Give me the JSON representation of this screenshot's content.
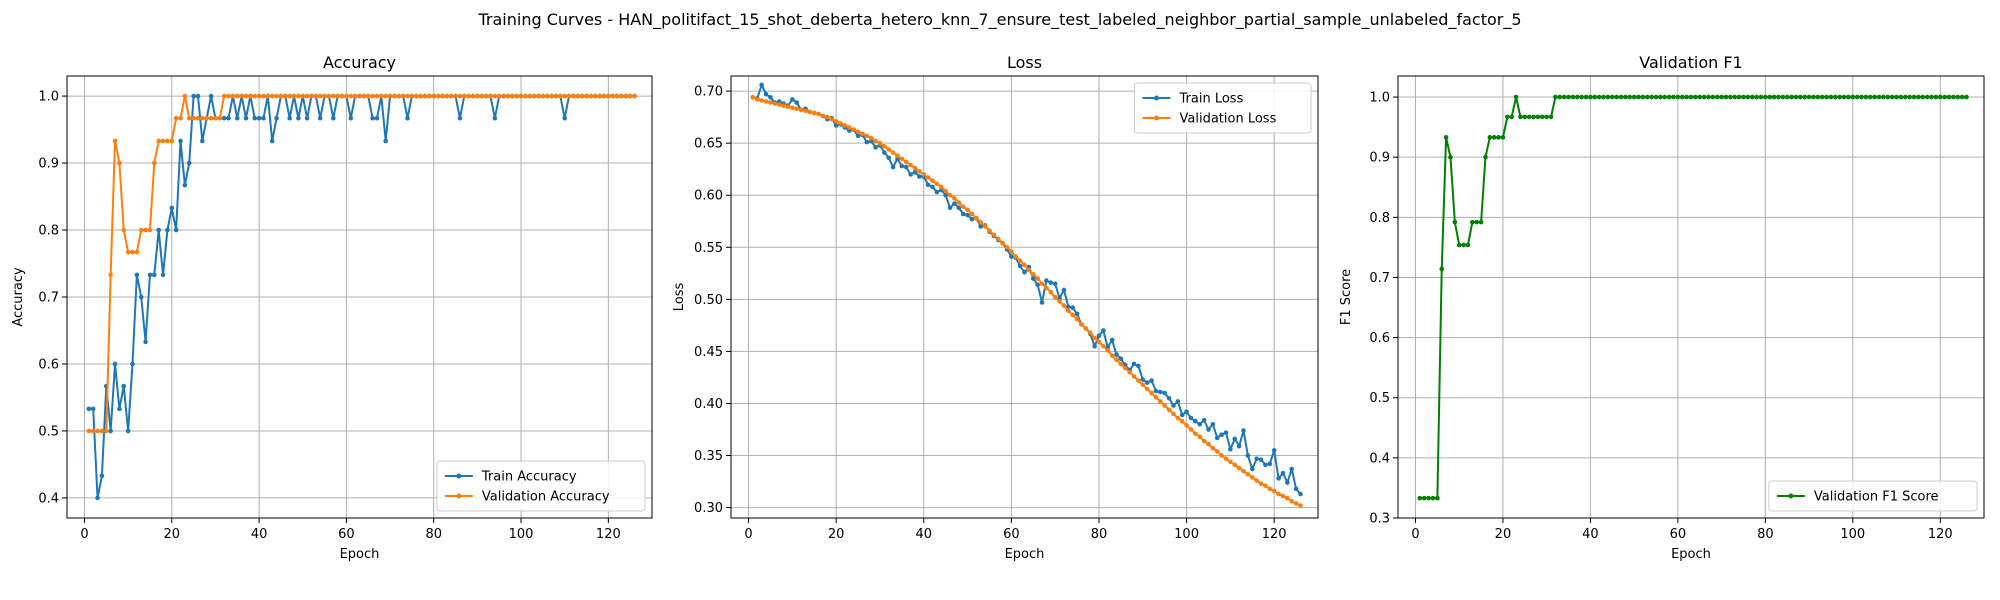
{
  "figure": {
    "suptitle": "Training Curves - HAN_politifact_15_shot_deberta_hetero_knn_7_ensure_test_labeled_neighbor_partial_sample_unlabeled_factor_5"
  },
  "colors": {
    "blue": "#1f77b4",
    "orange": "#ff7f0e",
    "green": "#008000",
    "grid": "#b0b0b0"
  },
  "chart_data": [
    {
      "type": "line",
      "title": "Accuracy",
      "xlabel": "Epoch",
      "ylabel": "Accuracy",
      "xlim": [
        -4,
        130
      ],
      "ylim": [
        0.37,
        1.03
      ],
      "xticks": [
        0,
        20,
        40,
        60,
        80,
        100,
        120
      ],
      "yticks": [
        0.4,
        0.5,
        0.6,
        0.7,
        0.8,
        0.9,
        1.0
      ],
      "ytick_labels": [
        "0.4",
        "0.5",
        "0.6",
        "0.7",
        "0.8",
        "0.9",
        "1.0"
      ],
      "grid": true,
      "legend": "lower-right",
      "series": [
        {
          "name": "Train Accuracy",
          "color": "#1f77b4",
          "x_start": 1,
          "values": [
            0.533,
            0.533,
            0.4,
            0.433,
            0.567,
            0.5,
            0.6,
            0.533,
            0.567,
            0.5,
            0.6,
            0.733,
            0.7,
            0.633,
            0.733,
            0.733,
            0.8,
            0.733,
            0.8,
            0.833,
            0.8,
            0.933,
            0.867,
            0.9,
            1.0,
            1.0,
            0.933,
            0.967,
            1.0,
            0.967,
            0.967,
            0.967,
            0.967,
            1.0,
            0.967,
            1.0,
            0.967,
            1.0,
            0.967,
            0.967,
            0.967,
            1.0,
            0.933,
            0.967,
            1.0,
            1.0,
            0.967,
            1.0,
            0.967,
            1.0,
            0.967,
            1.0,
            1.0,
            0.967,
            1.0,
            1.0,
            0.967,
            1.0,
            1.0,
            1.0,
            0.967,
            1.0,
            1.0,
            1.0,
            1.0,
            0.967,
            0.967,
            1.0,
            0.933,
            1.0,
            1.0,
            1.0,
            1.0,
            0.967,
            1.0,
            1.0,
            1.0,
            1.0,
            1.0,
            1.0,
            1.0,
            1.0,
            1.0,
            1.0,
            1.0,
            0.967,
            1.0,
            1.0,
            1.0,
            1.0,
            1.0,
            1.0,
            1.0,
            0.967,
            1.0,
            1.0,
            1.0,
            1.0,
            1.0,
            1.0,
            1.0,
            1.0,
            1.0,
            1.0,
            1.0,
            1.0,
            1.0,
            1.0,
            1.0,
            0.967,
            1.0,
            1.0,
            1.0,
            1.0,
            1.0,
            1.0,
            1.0,
            1.0,
            1.0,
            1.0,
            1.0,
            1.0,
            1.0,
            1.0,
            1.0,
            1.0
          ]
        },
        {
          "name": "Validation Accuracy",
          "color": "#ff7f0e",
          "x_start": 1,
          "values": [
            0.5,
            0.5,
            0.5,
            0.5,
            0.5,
            0.733,
            0.933,
            0.9,
            0.8,
            0.767,
            0.767,
            0.767,
            0.8,
            0.8,
            0.8,
            0.9,
            0.933,
            0.933,
            0.933,
            0.933,
            0.967,
            0.967,
            1.0,
            0.967,
            0.967,
            0.967,
            0.967,
            0.967,
            0.967,
            0.967,
            0.967,
            1.0,
            1.0,
            1.0,
            1.0,
            1.0,
            1.0,
            1.0,
            1.0,
            1.0,
            1.0,
            1.0,
            1.0,
            1.0,
            1.0,
            1.0,
            1.0,
            1.0,
            1.0,
            1.0,
            1.0,
            1.0,
            1.0,
            1.0,
            1.0,
            1.0,
            1.0,
            1.0,
            1.0,
            1.0,
            1.0,
            1.0,
            1.0,
            1.0,
            1.0,
            1.0,
            1.0,
            1.0,
            1.0,
            1.0,
            1.0,
            1.0,
            1.0,
            1.0,
            1.0,
            1.0,
            1.0,
            1.0,
            1.0,
            1.0,
            1.0,
            1.0,
            1.0,
            1.0,
            1.0,
            1.0,
            1.0,
            1.0,
            1.0,
            1.0,
            1.0,
            1.0,
            1.0,
            1.0,
            1.0,
            1.0,
            1.0,
            1.0,
            1.0,
            1.0,
            1.0,
            1.0,
            1.0,
            1.0,
            1.0,
            1.0,
            1.0,
            1.0,
            1.0,
            1.0,
            1.0,
            1.0,
            1.0,
            1.0,
            1.0,
            1.0,
            1.0,
            1.0,
            1.0,
            1.0,
            1.0,
            1.0,
            1.0,
            1.0,
            1.0,
            1.0
          ]
        }
      ]
    },
    {
      "type": "line",
      "title": "Loss",
      "xlabel": "Epoch",
      "ylabel": "Loss",
      "xlim": [
        -4,
        130
      ],
      "ylim": [
        0.29,
        0.7145
      ],
      "xticks": [
        0,
        20,
        40,
        60,
        80,
        100,
        120
      ],
      "yticks": [
        0.3,
        0.35,
        0.4,
        0.45,
        0.5,
        0.55,
        0.6,
        0.65,
        0.7
      ],
      "ytick_labels": [
        "0.30",
        "0.35",
        "0.40",
        "0.45",
        "0.50",
        "0.55",
        "0.60",
        "0.65",
        "0.70"
      ],
      "grid": true,
      "legend": "top-right",
      "series": [
        {
          "name": "Train Loss",
          "color": "#1f77b4",
          "x_start": 1,
          "values": [
            0.694,
            0.693,
            0.706,
            0.697,
            0.694,
            0.689,
            0.69,
            0.688,
            0.686,
            0.692,
            0.689,
            0.682,
            0.683,
            0.68,
            0.679,
            0.678,
            0.676,
            0.673,
            0.674,
            0.667,
            0.668,
            0.665,
            0.662,
            0.663,
            0.657,
            0.658,
            0.651,
            0.652,
            0.646,
            0.648,
            0.641,
            0.636,
            0.627,
            0.635,
            0.628,
            0.627,
            0.62,
            0.622,
            0.618,
            0.618,
            0.61,
            0.608,
            0.603,
            0.605,
            0.6,
            0.588,
            0.592,
            0.588,
            0.582,
            0.581,
            0.577,
            0.578,
            0.57,
            0.571,
            0.565,
            0.561,
            0.557,
            0.554,
            0.548,
            0.541,
            0.54,
            0.532,
            0.526,
            0.531,
            0.52,
            0.514,
            0.497,
            0.518,
            0.516,
            0.515,
            0.501,
            0.509,
            0.493,
            0.492,
            0.486,
            0.476,
            0.472,
            0.467,
            0.455,
            0.465,
            0.47,
            0.454,
            0.461,
            0.447,
            0.443,
            0.437,
            0.432,
            0.438,
            0.436,
            0.423,
            0.42,
            0.422,
            0.412,
            0.411,
            0.41,
            0.405,
            0.398,
            0.402,
            0.389,
            0.392,
            0.386,
            0.383,
            0.38,
            0.384,
            0.375,
            0.38,
            0.367,
            0.37,
            0.372,
            0.356,
            0.366,
            0.359,
            0.374,
            0.35,
            0.337,
            0.347,
            0.346,
            0.341,
            0.342,
            0.355,
            0.328,
            0.333,
            0.324,
            0.337,
            0.318,
            0.313
          ]
        },
        {
          "name": "Validation Loss",
          "color": "#ff7f0e",
          "x_start": 1,
          "values": [
            0.694,
            0.692,
            0.691,
            0.69,
            0.689,
            0.688,
            0.687,
            0.686,
            0.685,
            0.684,
            0.683,
            0.682,
            0.681,
            0.68,
            0.679,
            0.678,
            0.676,
            0.675,
            0.673,
            0.671,
            0.669,
            0.667,
            0.665,
            0.663,
            0.661,
            0.659,
            0.657,
            0.655,
            0.652,
            0.65,
            0.647,
            0.644,
            0.641,
            0.638,
            0.635,
            0.632,
            0.629,
            0.626,
            0.623,
            0.62,
            0.617,
            0.614,
            0.611,
            0.608,
            0.604,
            0.6,
            0.597,
            0.593,
            0.589,
            0.586,
            0.582,
            0.578,
            0.574,
            0.57,
            0.566,
            0.562,
            0.558,
            0.554,
            0.55,
            0.546,
            0.541,
            0.537,
            0.533,
            0.528,
            0.524,
            0.52,
            0.515,
            0.511,
            0.507,
            0.502,
            0.498,
            0.494,
            0.489,
            0.485,
            0.481,
            0.476,
            0.472,
            0.468,
            0.463,
            0.459,
            0.455,
            0.451,
            0.446,
            0.442,
            0.438,
            0.434,
            0.43,
            0.426,
            0.422,
            0.418,
            0.414,
            0.41,
            0.406,
            0.402,
            0.398,
            0.394,
            0.39,
            0.386,
            0.383,
            0.379,
            0.375,
            0.371,
            0.368,
            0.364,
            0.361,
            0.357,
            0.354,
            0.35,
            0.347,
            0.344,
            0.341,
            0.338,
            0.335,
            0.332,
            0.329,
            0.326,
            0.323,
            0.321,
            0.318,
            0.316,
            0.313,
            0.311,
            0.309,
            0.306,
            0.304,
            0.302
          ]
        }
      ]
    },
    {
      "type": "line",
      "title": "Validation F1",
      "xlabel": "Epoch",
      "ylabel": "F1 Score",
      "xlim": [
        -4,
        130
      ],
      "ylim": [
        0.3,
        1.035
      ],
      "xticks": [
        0,
        20,
        40,
        60,
        80,
        100,
        120
      ],
      "yticks": [
        0.3,
        0.4,
        0.5,
        0.6,
        0.7,
        0.8,
        0.9,
        1.0
      ],
      "ytick_labels": [
        "0.3",
        "0.4",
        "0.5",
        "0.6",
        "0.7",
        "0.8",
        "0.9",
        "1.0"
      ],
      "grid": true,
      "legend": "lower-right",
      "series": [
        {
          "name": "Validation F1 Score",
          "color": "#008000",
          "x_start": 1,
          "values": [
            0.333,
            0.333,
            0.333,
            0.333,
            0.333,
            0.714,
            0.933,
            0.9,
            0.792,
            0.754,
            0.754,
            0.754,
            0.792,
            0.792,
            0.792,
            0.9,
            0.933,
            0.933,
            0.933,
            0.933,
            0.967,
            0.967,
            1.0,
            0.967,
            0.967,
            0.967,
            0.967,
            0.967,
            0.967,
            0.967,
            0.967,
            1.0,
            1.0,
            1.0,
            1.0,
            1.0,
            1.0,
            1.0,
            1.0,
            1.0,
            1.0,
            1.0,
            1.0,
            1.0,
            1.0,
            1.0,
            1.0,
            1.0,
            1.0,
            1.0,
            1.0,
            1.0,
            1.0,
            1.0,
            1.0,
            1.0,
            1.0,
            1.0,
            1.0,
            1.0,
            1.0,
            1.0,
            1.0,
            1.0,
            1.0,
            1.0,
            1.0,
            1.0,
            1.0,
            1.0,
            1.0,
            1.0,
            1.0,
            1.0,
            1.0,
            1.0,
            1.0,
            1.0,
            1.0,
            1.0,
            1.0,
            1.0,
            1.0,
            1.0,
            1.0,
            1.0,
            1.0,
            1.0,
            1.0,
            1.0,
            1.0,
            1.0,
            1.0,
            1.0,
            1.0,
            1.0,
            1.0,
            1.0,
            1.0,
            1.0,
            1.0,
            1.0,
            1.0,
            1.0,
            1.0,
            1.0,
            1.0,
            1.0,
            1.0,
            1.0,
            1.0,
            1.0,
            1.0,
            1.0,
            1.0,
            1.0,
            1.0,
            1.0,
            1.0,
            1.0,
            1.0,
            1.0,
            1.0,
            1.0,
            1.0,
            1.0
          ]
        }
      ]
    }
  ]
}
